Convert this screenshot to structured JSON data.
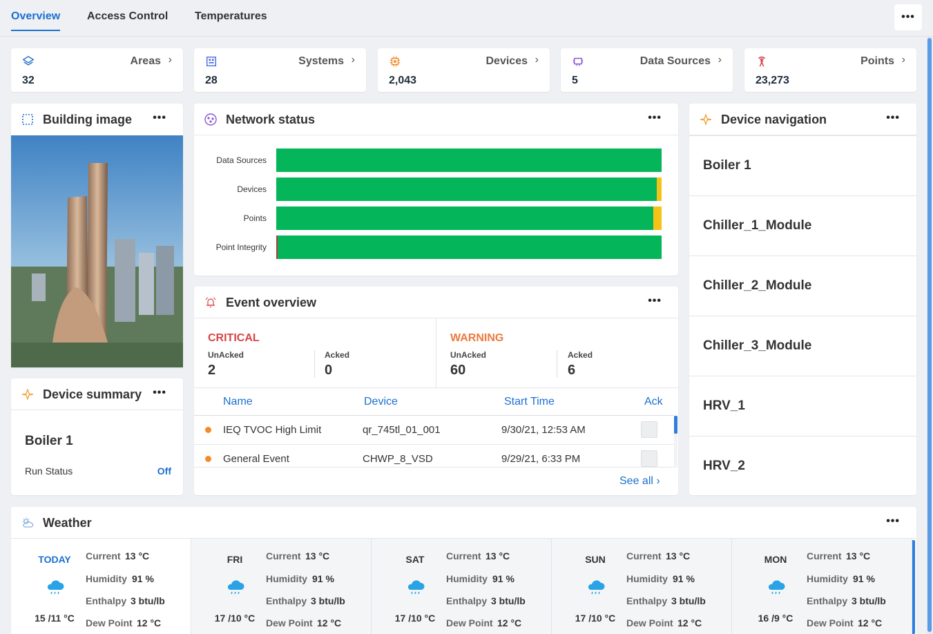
{
  "tabs": [
    "Overview",
    "Access Control",
    "Temperatures"
  ],
  "more_label": "•••",
  "stats": [
    {
      "label": "Areas",
      "value": "32",
      "icon": "layers-icon"
    },
    {
      "label": "Systems",
      "value": "28",
      "icon": "system-icon"
    },
    {
      "label": "Devices",
      "value": "2,043",
      "icon": "chip-icon"
    },
    {
      "label": "Data Sources",
      "value": "5",
      "icon": "datasource-icon"
    },
    {
      "label": "Points",
      "value": "23,273",
      "icon": "antenna-icon"
    }
  ],
  "building": {
    "title": "Building image"
  },
  "device_summary": {
    "title": "Device summary",
    "device": "Boiler 1",
    "status_label": "Run Status",
    "status_value": "Off"
  },
  "network": {
    "title": "Network status",
    "rows": [
      {
        "label": "Data Sources",
        "ok": 1.0,
        "warn": 0.0,
        "err": 0.0
      },
      {
        "label": "Devices",
        "ok": 0.987,
        "warn": 0.013,
        "err": 0.0
      },
      {
        "label": "Points",
        "ok": 0.978,
        "warn": 0.022,
        "err": 0.0
      },
      {
        "label": "Point Integrity",
        "ok": 0.996,
        "warn": 0.0,
        "err": 0.004
      }
    ],
    "colors": {
      "ok": "#05b55a",
      "warn": "#f5c318",
      "err": "#b33b3b"
    }
  },
  "events": {
    "title": "Event overview",
    "critical": {
      "title": "CRITICAL",
      "unacked_label": "UnAcked",
      "unacked": "2",
      "acked_label": "Acked",
      "acked": "0",
      "color": "#d64545"
    },
    "warning": {
      "title": "WARNING",
      "unacked_label": "UnAcked",
      "unacked": "60",
      "acked_label": "Acked",
      "acked": "6",
      "color": "#ec7a3d"
    },
    "columns": [
      "Name",
      "Device",
      "Start Time",
      "Ack"
    ],
    "rows": [
      {
        "name": "IEQ TVOC High Limit",
        "device": "qr_745tl_01_001",
        "time": "9/30/21, 12:53 AM"
      },
      {
        "name": "General Event",
        "device": "CHWP_8_VSD",
        "time": "9/29/21, 6:33 PM"
      }
    ],
    "see_all": "See all"
  },
  "device_nav": {
    "title": "Device navigation",
    "items": [
      "Boiler 1",
      "Chiller_1_Module",
      "Chiller_2_Module",
      "Chiller_3_Module",
      "HRV_1",
      "HRV_2"
    ]
  },
  "weather": {
    "title": "Weather",
    "days": [
      {
        "day": "TODAY",
        "temp": "15 /11 °C",
        "current": "13 °C",
        "humidity": "91 %",
        "enthalpy": "3 btu/lb",
        "dew": "12 °C"
      },
      {
        "day": "FRI",
        "temp": "17 /10 °C",
        "current": "13 °C",
        "humidity": "91 %",
        "enthalpy": "3 btu/lb",
        "dew": "12 °C"
      },
      {
        "day": "SAT",
        "temp": "17 /10 °C",
        "current": "13 °C",
        "humidity": "91 %",
        "enthalpy": "3 btu/lb",
        "dew": "12 °C"
      },
      {
        "day": "SUN",
        "temp": "17 /10 °C",
        "current": "13 °C",
        "humidity": "91 %",
        "enthalpy": "3 btu/lb",
        "dew": "12 °C"
      },
      {
        "day": "MON",
        "temp": "16 /9 °C",
        "current": "13 °C",
        "humidity": "91 %",
        "enthalpy": "3 btu/lb",
        "dew": "12 °C"
      }
    ],
    "labels": {
      "current": "Current",
      "humidity": "Humidity",
      "enthalpy": "Enthalpy",
      "dew": "Dew Point"
    }
  }
}
